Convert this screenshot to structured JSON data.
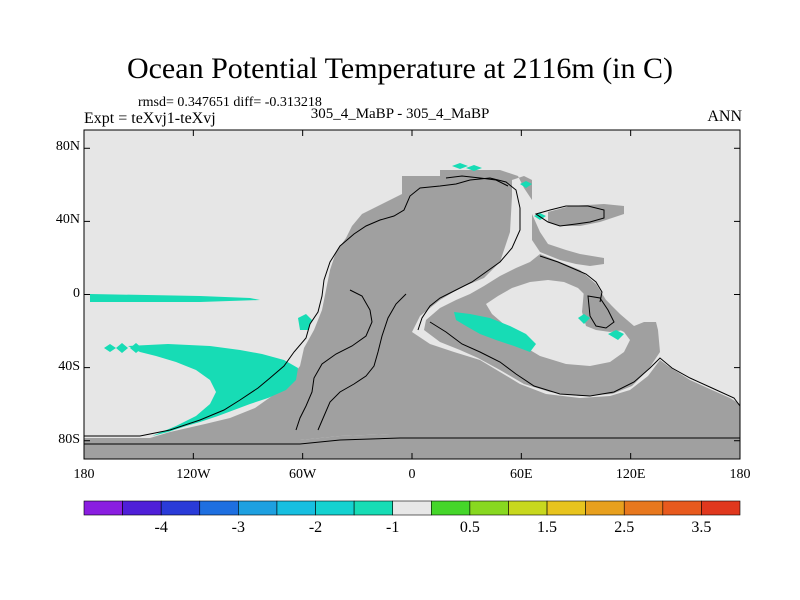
{
  "title": "Ocean Potential Temperature at 2116m (in C)",
  "stats_line": "rmsd= 0.347651 diff= -0.313218",
  "experiment_label": "Expt = teXvj1-teXvj",
  "case_label": "305_4_MaBP - 305_4_MaBP",
  "season": "ANN",
  "colors": {
    "ocean": "#e6e6e6",
    "land": "#a0a0a0",
    "anomaly": "#17dcb5",
    "outline": "#000000"
  },
  "chart_data": {
    "type": "map",
    "projection": "cylindrical-equidistant",
    "lon_range": [
      -180,
      180
    ],
    "lat_range": [
      -90,
      90
    ],
    "lat_ticks": [
      {
        "value": 80,
        "label": "80N"
      },
      {
        "value": 40,
        "label": "40N"
      },
      {
        "value": 0,
        "label": "0"
      },
      {
        "value": -40,
        "label": "40S"
      },
      {
        "value": -80,
        "label": "80S"
      }
    ],
    "lon_ticks": [
      {
        "value": -180,
        "label": "180"
      },
      {
        "value": -120,
        "label": "120W"
      },
      {
        "value": -60,
        "label": "60W"
      },
      {
        "value": 0,
        "label": "0"
      },
      {
        "value": 60,
        "label": "60E"
      },
      {
        "value": 120,
        "label": "120E"
      },
      {
        "value": 180,
        "label": "180"
      }
    ],
    "colorbar": {
      "colors": [
        "#8a1ee0",
        "#4f1fd8",
        "#2a3bd8",
        "#1e6fe0",
        "#1ea0e0",
        "#17bfe0",
        "#14d2d0",
        "#17dcb5",
        "#e8e8e8",
        "#45d62a",
        "#88d820",
        "#c8d81e",
        "#e8c41e",
        "#e8a01e",
        "#e8781e",
        "#e85a1e",
        "#e0381e"
      ],
      "labels": [
        {
          "after_index": 1,
          "text": "-4"
        },
        {
          "after_index": 3,
          "text": "-3"
        },
        {
          "after_index": 5,
          "text": "-2"
        },
        {
          "after_index": 7,
          "text": "-1"
        },
        {
          "after_index": 9,
          "text": "0.5"
        },
        {
          "after_index": 11,
          "text": "1.5"
        },
        {
          "after_index": 13,
          "text": "2.5"
        },
        {
          "after_index": 15,
          "text": "3.5"
        }
      ]
    }
  }
}
